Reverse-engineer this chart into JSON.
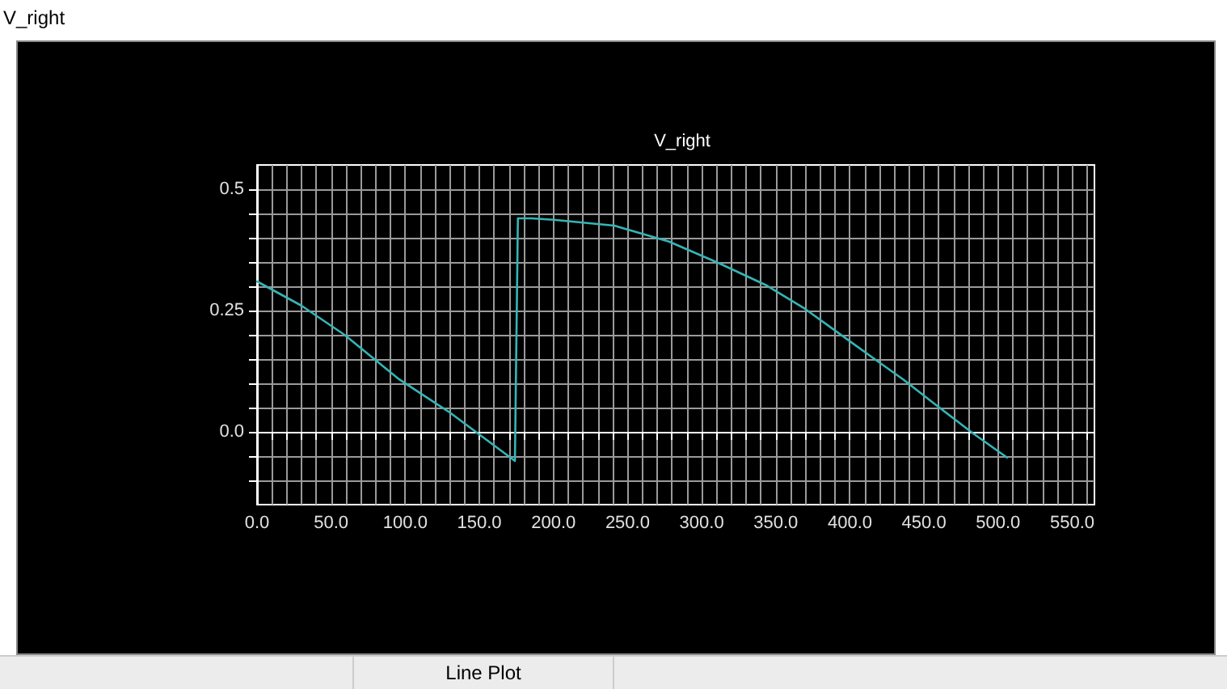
{
  "chart_data": {
    "type": "line",
    "title": "V_right",
    "annotations": [
      "V_right",
      "Line Plot"
    ],
    "x": [
      0,
      30,
      59,
      96,
      130,
      174,
      176,
      185,
      200,
      241,
      278,
      312,
      343,
      370,
      398,
      418,
      436,
      457,
      483,
      506
    ],
    "series": [
      {
        "color": "#36b5b5",
        "values": [
          0.31,
          0.26,
          0.2,
          0.108,
          0.04,
          -0.06,
          0.44,
          0.44,
          0.437,
          0.425,
          0.392,
          0.347,
          0.303,
          0.253,
          0.191,
          0.147,
          0.108,
          0.058,
          -0.003,
          -0.053
        ]
      }
    ],
    "xlim": [
      0,
      565
    ],
    "ylim": [
      -0.15,
      0.55
    ],
    "xticks": [
      {
        "value": 0,
        "label": "0.0"
      },
      {
        "value": 10,
        "label": null
      },
      {
        "value": 20,
        "label": null
      },
      {
        "value": 30,
        "label": null
      },
      {
        "value": 40,
        "label": null
      },
      {
        "value": 50,
        "label": "50.0"
      },
      {
        "value": 60,
        "label": null
      },
      {
        "value": 70,
        "label": null
      },
      {
        "value": 80,
        "label": null
      },
      {
        "value": 90,
        "label": null
      },
      {
        "value": 100,
        "label": "100.0"
      },
      {
        "value": 110,
        "label": null
      },
      {
        "value": 120,
        "label": null
      },
      {
        "value": 130,
        "label": null
      },
      {
        "value": 140,
        "label": null
      },
      {
        "value": 150,
        "label": "150.0"
      },
      {
        "value": 160,
        "label": null
      },
      {
        "value": 170,
        "label": null
      },
      {
        "value": 180,
        "label": null
      },
      {
        "value": 190,
        "label": null
      },
      {
        "value": 200,
        "label": "200.0"
      },
      {
        "value": 210,
        "label": null
      },
      {
        "value": 220,
        "label": null
      },
      {
        "value": 230,
        "label": null
      },
      {
        "value": 240,
        "label": null
      },
      {
        "value": 250,
        "label": "250.0"
      },
      {
        "value": 260,
        "label": null
      },
      {
        "value": 270,
        "label": null
      },
      {
        "value": 280,
        "label": null
      },
      {
        "value": 290,
        "label": null
      },
      {
        "value": 300,
        "label": "300.0"
      },
      {
        "value": 310,
        "label": null
      },
      {
        "value": 320,
        "label": null
      },
      {
        "value": 330,
        "label": null
      },
      {
        "value": 340,
        "label": null
      },
      {
        "value": 350,
        "label": "350.0"
      },
      {
        "value": 360,
        "label": null
      },
      {
        "value": 370,
        "label": null
      },
      {
        "value": 380,
        "label": null
      },
      {
        "value": 390,
        "label": null
      },
      {
        "value": 400,
        "label": "400.0"
      },
      {
        "value": 410,
        "label": null
      },
      {
        "value": 420,
        "label": null
      },
      {
        "value": 430,
        "label": null
      },
      {
        "value": 440,
        "label": null
      },
      {
        "value": 450,
        "label": "450.0"
      },
      {
        "value": 460,
        "label": null
      },
      {
        "value": 470,
        "label": null
      },
      {
        "value": 480,
        "label": null
      },
      {
        "value": 490,
        "label": null
      },
      {
        "value": 500,
        "label": "500.0"
      },
      {
        "value": 510,
        "label": null
      },
      {
        "value": 520,
        "label": null
      },
      {
        "value": 530,
        "label": null
      },
      {
        "value": 540,
        "label": null
      },
      {
        "value": 550,
        "label": "550.0"
      },
      {
        "value": 560,
        "label": null
      }
    ],
    "yticks": [
      {
        "value": -0.1,
        "label": null
      },
      {
        "value": -0.05,
        "label": null
      },
      {
        "value": 0,
        "label": "0.0"
      },
      {
        "value": 0.05,
        "label": null
      },
      {
        "value": 0.1,
        "label": null
      },
      {
        "value": 0.15,
        "label": null
      },
      {
        "value": 0.2,
        "label": null
      },
      {
        "value": 0.25,
        "label": "0.25"
      },
      {
        "value": 0.3,
        "label": null
      },
      {
        "value": 0.35,
        "label": null
      },
      {
        "value": 0.4,
        "label": null
      },
      {
        "value": 0.45,
        "label": null
      },
      {
        "value": 0.5,
        "label": "0.5"
      }
    ],
    "grid": true,
    "marker": "none",
    "line_style": "solid"
  }
}
